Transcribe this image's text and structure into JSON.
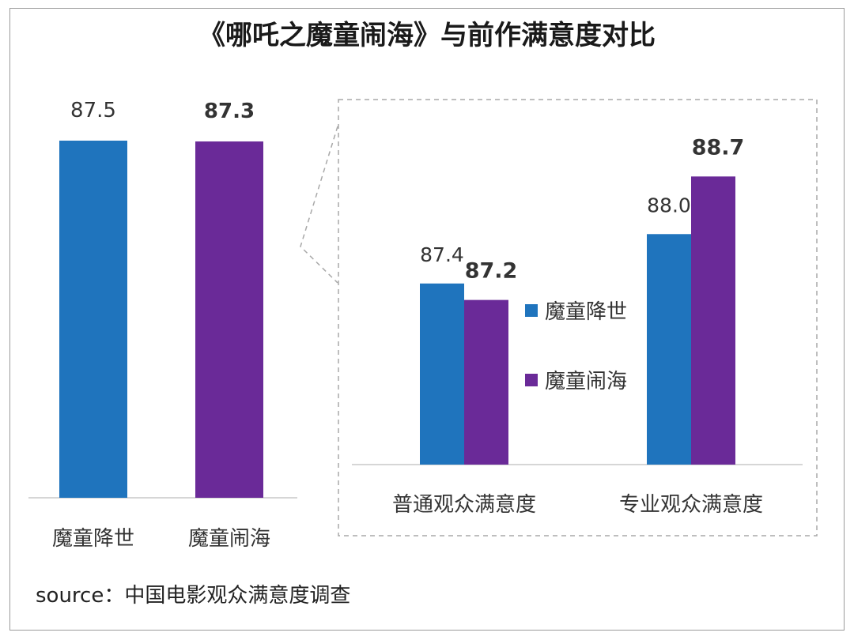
{
  "title": "《哪吒之魔童闹海》与前作满意度对比",
  "source": "source：中国电影观众满意度调查",
  "colors": {
    "series1": "#1f74bd",
    "series2": "#6a2a98",
    "axis": "#c8c8c8",
    "dash": "#a8a8a8",
    "text": "#333333"
  },
  "chart_data": [
    {
      "type": "bar",
      "title": "",
      "categories": [
        "魔童降世",
        "魔童闹海"
      ],
      "values": [
        87.5,
        87.3
      ],
      "value_labels": [
        "87.5",
        "87.3"
      ],
      "bold_label": [
        false,
        true
      ],
      "colors": [
        "#1f74bd",
        "#6a2a98"
      ],
      "ylim": [
        0,
        90
      ],
      "grid": false
    },
    {
      "type": "bar",
      "title": "",
      "categories": [
        "普通观众满意度",
        "专业观众满意度"
      ],
      "series": [
        {
          "name": "魔童降世",
          "values": [
            87.4,
            88.0
          ],
          "labels": [
            "87.4",
            "88.0"
          ],
          "bold": false,
          "color": "#1f74bd"
        },
        {
          "name": "魔童闹海",
          "values": [
            87.2,
            88.7
          ],
          "labels": [
            "87.2",
            "88.7"
          ],
          "bold": true,
          "color": "#6a2a98"
        }
      ],
      "ylim": [
        85.2,
        89.5
      ],
      "legend": "center",
      "grid": false
    }
  ]
}
